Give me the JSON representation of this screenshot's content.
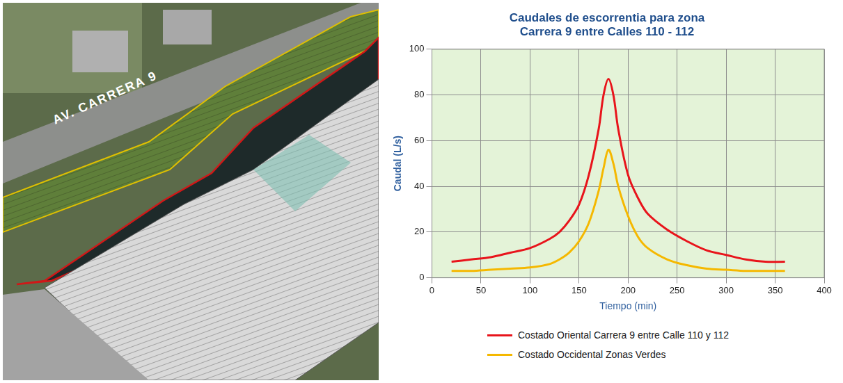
{
  "chart_data": {
    "type": "line",
    "title": [
      "Caudales de escorrentia para zona",
      "Carrera 9 entre Calles 110 - 112"
    ],
    "x_label": "Tiempo (min)",
    "y_label": "Caudal (L/s)",
    "x": [
      20,
      40,
      60,
      80,
      100,
      120,
      130,
      140,
      150,
      160,
      170,
      175,
      180,
      185,
      190,
      200,
      210,
      220,
      240,
      260,
      280,
      300,
      320,
      340,
      360
    ],
    "series": [
      {
        "name": "Costado Oriental Carrera 9 entre Calle 110 y 112",
        "color": "#e8141b",
        "values": [
          7,
          8,
          9,
          11,
          13,
          17,
          20,
          25,
          32,
          45,
          65,
          80,
          87,
          80,
          65,
          45,
          35,
          28,
          21,
          16,
          12,
          10,
          8,
          7,
          7
        ]
      },
      {
        "name": "Costado Occidental Zonas Verdes",
        "color": "#f5b800",
        "values": [
          3,
          3,
          3.5,
          4,
          4.5,
          6,
          8,
          11,
          16,
          24,
          38,
          48,
          56,
          50,
          40,
          27,
          18,
          13,
          8,
          5.5,
          4,
          3.5,
          3,
          3,
          3
        ]
      }
    ],
    "xlim": [
      0,
      400
    ],
    "xticks": [
      0,
      50,
      100,
      150,
      200,
      250,
      300,
      350,
      400
    ],
    "ylim": [
      0,
      100
    ],
    "yticks": [
      0,
      20,
      40,
      60,
      80,
      100
    ],
    "grid": true,
    "legend": "bottom"
  },
  "map": {
    "street_label": "AV. CARRERA 9"
  }
}
